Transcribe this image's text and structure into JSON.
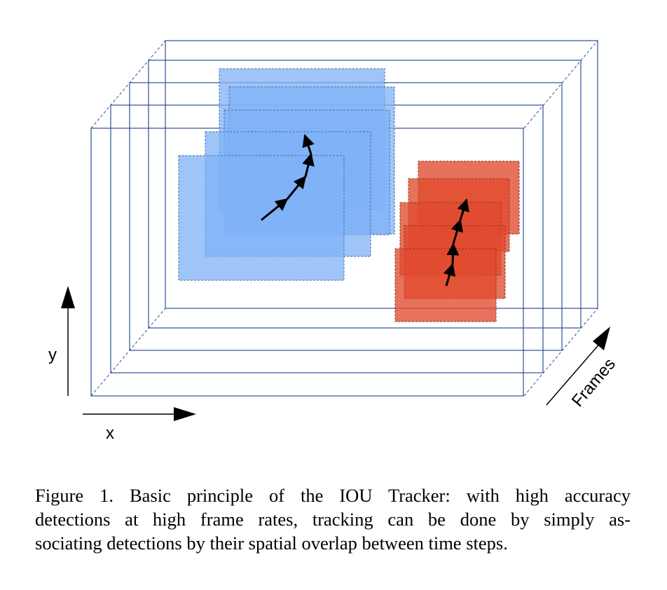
{
  "diagram": {
    "axis_x_label": "x",
    "axis_y_label": "y",
    "axis_frames_label": "Frames",
    "colors": {
      "frame_stroke": "#2e4f9a",
      "blue_box": "#7fb2f5",
      "red_box": "#e04a2e",
      "arrow": "#000000"
    }
  },
  "caption": {
    "lines": [
      "Figure 1. Basic principle of the IOU Tracker: with high accuracy",
      "detections at high frame rates, tracking can be done by simply as-",
      "sociating detections by their spatial overlap between time steps."
    ]
  }
}
